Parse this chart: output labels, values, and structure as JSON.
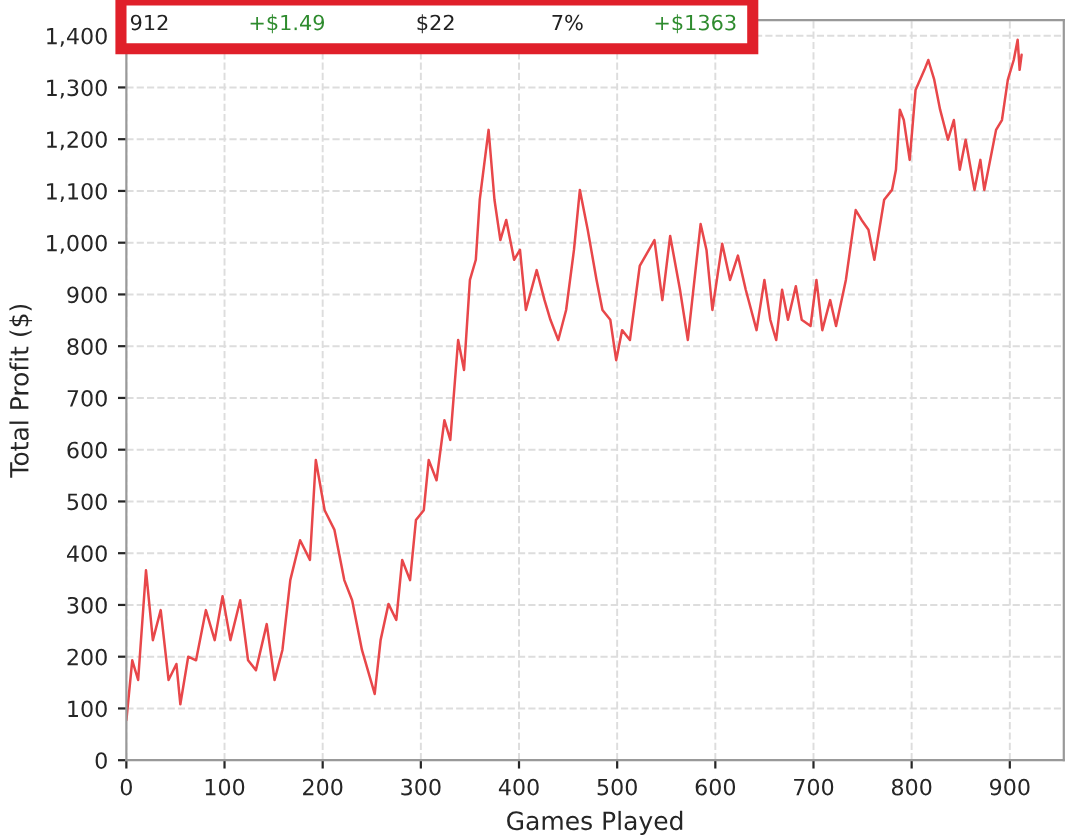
{
  "chart_data": {
    "type": "line",
    "xlabel": "Games Played",
    "ylabel": "Total Profit ($)",
    "annotations": [
      "912",
      "+$1.49",
      "$22",
      "7%",
      "+$1363"
    ],
    "xlim": [
      0,
      955
    ],
    "xticks": [
      0,
      100,
      200,
      300,
      400,
      500,
      600,
      700,
      800,
      900
    ],
    "ylim": [
      0,
      1430
    ],
    "yticks": [
      0,
      100,
      200,
      300,
      400,
      500,
      600,
      700,
      800,
      900,
      {
        "value": 1000,
        "label": "1,000"
      },
      {
        "value": 1100,
        "label": "1,100"
      },
      {
        "value": 1200,
        "label": "1,200"
      },
      {
        "value": 1300,
        "label": "1,300"
      },
      {
        "value": 1400,
        "label": "1,400"
      }
    ],
    "grid": true,
    "marker": "none",
    "line_style": "solid",
    "x": [
      0,
      6,
      12,
      20,
      27,
      35,
      43,
      51,
      55,
      63,
      71,
      81,
      90,
      98,
      106,
      116,
      124,
      132,
      143,
      151,
      159,
      167,
      177,
      187,
      193,
      202,
      212,
      222,
      230,
      240,
      253,
      259,
      267,
      275,
      281,
      289,
      295,
      303,
      308,
      316,
      324,
      330,
      338,
      344,
      350,
      356,
      360,
      369,
      375,
      381,
      387,
      395,
      401,
      407,
      418,
      426,
      432,
      440,
      448,
      456,
      462,
      470,
      479,
      485,
      493,
      499,
      505,
      513,
      523,
      538,
      546,
      554,
      564,
      572,
      585,
      591,
      597,
      607,
      615,
      623,
      631,
      642,
      650,
      656,
      662,
      668,
      674,
      682,
      688,
      697,
      703,
      709,
      717,
      723,
      733,
      743,
      749,
      756,
      762,
      772,
      780,
      784,
      788,
      792,
      798,
      804,
      813,
      817,
      823,
      829,
      837,
      843,
      849,
      855,
      864,
      870,
      874,
      880,
      886,
      892,
      898,
      904,
      908,
      910,
      912
    ],
    "series": [
      {
        "color": "#e8474a",
        "values": [
          77,
          193,
          155,
          367,
          232,
          290,
          155,
          186,
          108,
          200,
          193,
          290,
          232,
          317,
          232,
          309,
          193,
          174,
          263,
          155,
          213,
          348,
          425,
          387,
          580,
          483,
          445,
          348,
          309,
          213,
          128,
          232,
          302,
          271,
          387,
          348,
          464,
          483,
          580,
          541,
          657,
          619,
          812,
          754,
          928,
          967,
          1083,
          1218,
          1083,
          1005,
          1044,
          967,
          986,
          870,
          947,
          889,
          851,
          812,
          870,
          986,
          1102,
          1025,
          928,
          870,
          851,
          773,
          831,
          812,
          955,
          1005,
          889,
          1013,
          909,
          812,
          1036,
          986,
          870,
          998,
          928,
          975,
          909,
          831,
          928,
          851,
          812,
          909,
          851,
          916,
          851,
          839,
          928,
          831,
          889,
          839,
          928,
          1063,
          1044,
          1025,
          967,
          1083,
          1102,
          1141,
          1257,
          1237,
          1160,
          1295,
          1334,
          1353,
          1315,
          1257,
          1199,
          1237,
          1141,
          1199,
          1102,
          1160,
          1102,
          1160,
          1218,
          1237,
          1315,
          1353,
          1392,
          1334,
          1363
        ]
      }
    ]
  }
}
